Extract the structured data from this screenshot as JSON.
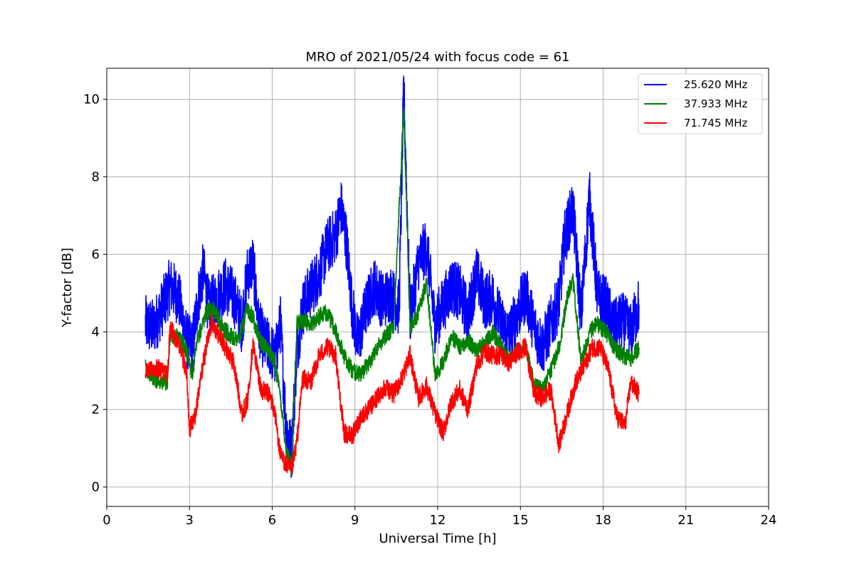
{
  "chart_data": {
    "type": "line",
    "title": "MRO of 2021/05/24 with focus code = 61",
    "xlabel": "Universal Time [h]",
    "ylabel": "Y-factor [dB]",
    "xlim": [
      0,
      24
    ],
    "ylim": [
      -0.5,
      10.8
    ],
    "xticks": [
      0,
      3,
      6,
      9,
      12,
      15,
      18,
      21,
      24
    ],
    "xtick_labels": [
      "0",
      "3",
      "6",
      "9",
      "12",
      "15",
      "18",
      "21",
      "24"
    ],
    "yticks": [
      0,
      2,
      4,
      6,
      8,
      10
    ],
    "ytick_labels": [
      "0",
      "2",
      "4",
      "6",
      "8",
      "10"
    ],
    "grid": true,
    "legend_position": "top-right",
    "series": [
      {
        "name": "25.620 MHz",
        "color": "#0000ff",
        "x": [
          1.4,
          1.7,
          2.0,
          2.3,
          2.6,
          2.9,
          3.1,
          3.3,
          3.5,
          3.7,
          3.9,
          4.1,
          4.3,
          4.6,
          4.9,
          5.1,
          5.3,
          5.5,
          5.7,
          5.9,
          6.1,
          6.3,
          6.5,
          6.7,
          6.9,
          7.1,
          7.4,
          7.7,
          8.0,
          8.3,
          8.5,
          8.7,
          8.9,
          9.1,
          9.4,
          9.7,
          10.0,
          10.3,
          10.6,
          10.77,
          11.0,
          11.3,
          11.6,
          11.9,
          12.2,
          12.5,
          12.8,
          13.1,
          13.4,
          13.7,
          14.0,
          14.3,
          14.6,
          14.9,
          15.2,
          15.5,
          15.8,
          16.1,
          16.4,
          16.6,
          16.9,
          17.2,
          17.5,
          17.8,
          18.1,
          18.4,
          18.7,
          19.0,
          19.3
        ],
        "y": [
          4.2,
          4.1,
          4.6,
          5.2,
          4.9,
          3.8,
          3.6,
          4.8,
          5.6,
          4.6,
          4.8,
          5.0,
          5.2,
          4.9,
          4.2,
          5.5,
          5.8,
          4.2,
          3.7,
          3.6,
          3.3,
          4.2,
          1.6,
          0.9,
          3.6,
          4.6,
          5.1,
          5.5,
          6.2,
          6.5,
          7.2,
          6.3,
          4.6,
          3.7,
          4.6,
          5.2,
          4.8,
          5.0,
          4.6,
          10.3,
          4.4,
          5.8,
          6.2,
          4.2,
          4.7,
          5.2,
          5.0,
          4.4,
          5.5,
          4.8,
          4.9,
          4.2,
          3.9,
          4.5,
          5.0,
          4.1,
          3.6,
          4.2,
          4.8,
          6.4,
          7.2,
          4.4,
          7.5,
          4.9,
          4.7,
          4.1,
          4.3,
          4.0,
          4.7
        ]
      },
      {
        "name": "37.933 MHz",
        "color": "#008000",
        "x": [
          1.4,
          1.7,
          2.0,
          2.2,
          2.3,
          2.6,
          2.9,
          3.1,
          3.3,
          3.6,
          3.9,
          4.2,
          4.5,
          4.8,
          5.1,
          5.3,
          5.6,
          5.9,
          6.1,
          6.3,
          6.5,
          6.7,
          6.9,
          7.1,
          7.4,
          7.7,
          8.0,
          8.3,
          8.6,
          8.9,
          9.2,
          9.5,
          9.8,
          10.1,
          10.4,
          10.77,
          11.0,
          11.3,
          11.6,
          11.9,
          12.2,
          12.5,
          12.8,
          13.1,
          13.4,
          13.7,
          14.0,
          14.3,
          14.6,
          14.9,
          15.2,
          15.5,
          15.8,
          16.1,
          16.4,
          16.7,
          16.9,
          17.2,
          17.5,
          17.8,
          18.1,
          18.4,
          18.7,
          19.0,
          19.3
        ],
        "y": [
          3.1,
          2.8,
          2.7,
          2.7,
          3.9,
          3.9,
          3.5,
          2.9,
          3.8,
          4.5,
          4.6,
          4.1,
          3.9,
          3.8,
          4.6,
          4.4,
          3.7,
          3.5,
          3.2,
          2.3,
          1.0,
          0.5,
          4.2,
          4.3,
          4.2,
          4.4,
          4.5,
          4.0,
          3.4,
          3.0,
          2.9,
          3.2,
          3.6,
          3.9,
          4.1,
          9.8,
          4.1,
          4.5,
          5.3,
          2.9,
          3.2,
          3.9,
          3.6,
          3.8,
          3.5,
          3.7,
          4.0,
          3.6,
          3.3,
          3.5,
          3.6,
          2.6,
          2.5,
          3.0,
          3.6,
          4.9,
          5.4,
          3.2,
          4.0,
          4.2,
          4.0,
          3.6,
          3.4,
          3.3,
          3.6
        ]
      },
      {
        "name": "71.745 MHz",
        "color": "#ff0000",
        "x": [
          1.4,
          1.7,
          2.0,
          2.2,
          2.3,
          2.6,
          2.9,
          3.0,
          3.2,
          3.5,
          3.8,
          4.0,
          4.3,
          4.6,
          4.9,
          5.1,
          5.3,
          5.6,
          5.9,
          6.1,
          6.3,
          6.5,
          6.7,
          6.9,
          7.1,
          7.4,
          7.7,
          8.0,
          8.3,
          8.6,
          8.9,
          9.2,
          9.5,
          9.8,
          10.1,
          10.4,
          10.7,
          11.0,
          11.3,
          11.6,
          11.9,
          12.2,
          12.5,
          12.8,
          13.1,
          13.4,
          13.7,
          14.0,
          14.3,
          14.6,
          14.9,
          15.2,
          15.5,
          15.8,
          16.1,
          16.4,
          16.7,
          17.0,
          17.3,
          17.6,
          17.9,
          18.2,
          18.5,
          18.8,
          19.0,
          19.3
        ],
        "y": [
          3.0,
          3.1,
          3.0,
          2.9,
          4.1,
          3.7,
          3.0,
          1.5,
          1.8,
          3.2,
          4.3,
          4.0,
          3.6,
          3.2,
          1.9,
          2.2,
          3.7,
          2.5,
          2.4,
          1.9,
          0.8,
          0.6,
          0.4,
          1.2,
          2.8,
          2.7,
          3.4,
          3.6,
          3.4,
          1.4,
          1.3,
          1.8,
          2.0,
          2.3,
          2.6,
          2.4,
          2.8,
          3.4,
          2.3,
          2.6,
          1.9,
          1.4,
          2.2,
          2.5,
          2.0,
          3.1,
          3.5,
          3.4,
          3.4,
          3.2,
          3.5,
          3.6,
          2.4,
          2.3,
          2.5,
          1.1,
          1.9,
          2.7,
          3.1,
          3.6,
          3.6,
          3.0,
          1.8,
          1.6,
          2.7,
          2.4
        ]
      }
    ]
  }
}
